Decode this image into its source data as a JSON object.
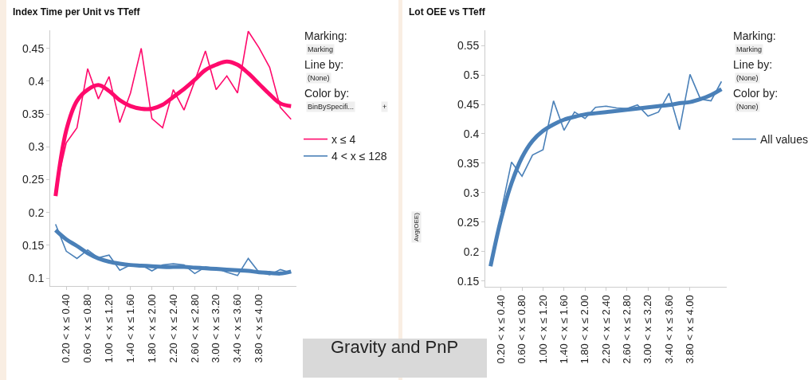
{
  "chart_data": [
    {
      "type": "line",
      "title": "Index Time per Unit vs TTeff",
      "categories": [
        null,
        "0.20 < x ≤ 0.40",
        null,
        "0.60 < x ≤ 0.80",
        null,
        "1.00 < x ≤ 1.20",
        null,
        "1.40 < x ≤ 1.60",
        null,
        "1.80 < x ≤ 2.00",
        null,
        "2.20 < x ≤ 2.40",
        null,
        "2.60 < x ≤ 2.80",
        null,
        "3.00 < x ≤ 3.20",
        null,
        "3.40 < x ≤ 3.60",
        null,
        "3.80 < x ≤ 4.00",
        null,
        null,
        null
      ],
      "series": [
        {
          "name": "x ≤ 4",
          "color": "#ff0a6c",
          "values": [
            0.234,
            0.306,
            0.329,
            0.419,
            0.373,
            0.407,
            0.337,
            0.382,
            0.45,
            0.343,
            0.329,
            0.387,
            0.356,
            0.4,
            0.446,
            0.387,
            0.408,
            0.382,
            0.476,
            0.451,
            0.421,
            0.36,
            0.342
          ]
        },
        {
          "name": "4 < x ≤ 128",
          "color": "#4a80b8",
          "values": [
            0.182,
            0.141,
            0.13,
            0.143,
            0.131,
            0.135,
            0.112,
            0.12,
            0.12,
            0.111,
            0.12,
            0.122,
            0.12,
            0.107,
            0.117,
            0.115,
            0.109,
            0.104,
            0.13,
            0.109,
            0.105,
            0.113,
            0.108
          ]
        },
        {
          "color": "#ff0a6c",
          "values": [
            0.225,
            0.325,
            0.37,
            0.387,
            0.394,
            0.385,
            0.371,
            0.362,
            0.358,
            0.358,
            0.364,
            0.376,
            0.388,
            0.402,
            0.417,
            0.425,
            0.43,
            0.425,
            0.412,
            0.396,
            0.38,
            0.366,
            0.362
          ]
        },
        {
          "color": "#4a80b8",
          "values": [
            0.173,
            0.159,
            0.149,
            0.138,
            0.13,
            0.125,
            0.122,
            0.12,
            0.119,
            0.118,
            0.117,
            0.117,
            0.117,
            0.116,
            0.115,
            0.114,
            0.113,
            0.112,
            0.111,
            0.109,
            0.108,
            0.107,
            0.11
          ]
        }
      ],
      "ylim": [
        0.088,
        0.4775
      ],
      "yticks": [
        0.1,
        0.15,
        0.2,
        0.25,
        0.3,
        0.35,
        0.4,
        0.45
      ],
      "legend": "right",
      "marker": "none",
      "line_style": "solid",
      "annotations": [
        "Marking:",
        "Marking",
        "Line by:",
        "(None)",
        "Color by:",
        "BinBySpecifi...",
        "+"
      ]
    },
    {
      "type": "line",
      "title": "Lot OEE vs TTeff",
      "ylabel": "Avg(OEE)",
      "categories": [
        null,
        "0.20 < x ≤ 0.40",
        null,
        "0.60 < x ≤ 0.80",
        null,
        "1.00 < x ≤ 1.20",
        null,
        "1.40 < x ≤ 1.60",
        null,
        "1.80 < x ≤ 2.00",
        null,
        "2.20 < x ≤ 2.40",
        null,
        "2.60 < x ≤ 2.80",
        null,
        "3.00 < x ≤ 3.20",
        null,
        "3.40 < x ≤ 3.60",
        null,
        "3.80 < x ≤ 4.00",
        null,
        null,
        null
      ],
      "series": [
        {
          "name": "All values",
          "color": "#4a80b8",
          "values": [
            null,
            0.267,
            0.352,
            0.328,
            0.364,
            0.373,
            0.456,
            0.406,
            0.437,
            0.426,
            0.445,
            0.447,
            0.444,
            0.443,
            0.449,
            0.43,
            0.437,
            0.469,
            0.407,
            0.501,
            0.459,
            0.456,
            0.489
          ]
        },
        {
          "color": "#4a80b8",
          "values": [
            0.175,
            0.255,
            0.316,
            0.36,
            0.388,
            0.405,
            0.416,
            0.424,
            0.429,
            0.433,
            0.435,
            0.437,
            0.439,
            0.441,
            0.443,
            0.445,
            0.447,
            0.449,
            0.452,
            0.454,
            0.459,
            0.466,
            0.476
          ]
        }
      ],
      "ylim": [
        0.14,
        0.576
      ],
      "yticks": [
        0.15,
        0.2,
        0.25,
        0.3,
        0.35,
        0.4,
        0.45,
        0.5,
        0.55
      ],
      "legend": "right",
      "marker": "none",
      "line_style": "solid",
      "annotations": [
        "Marking:",
        "Marking",
        "Line by:",
        "(None)",
        "Color by:",
        "(None)",
        "Gravity and PnP"
      ]
    }
  ]
}
